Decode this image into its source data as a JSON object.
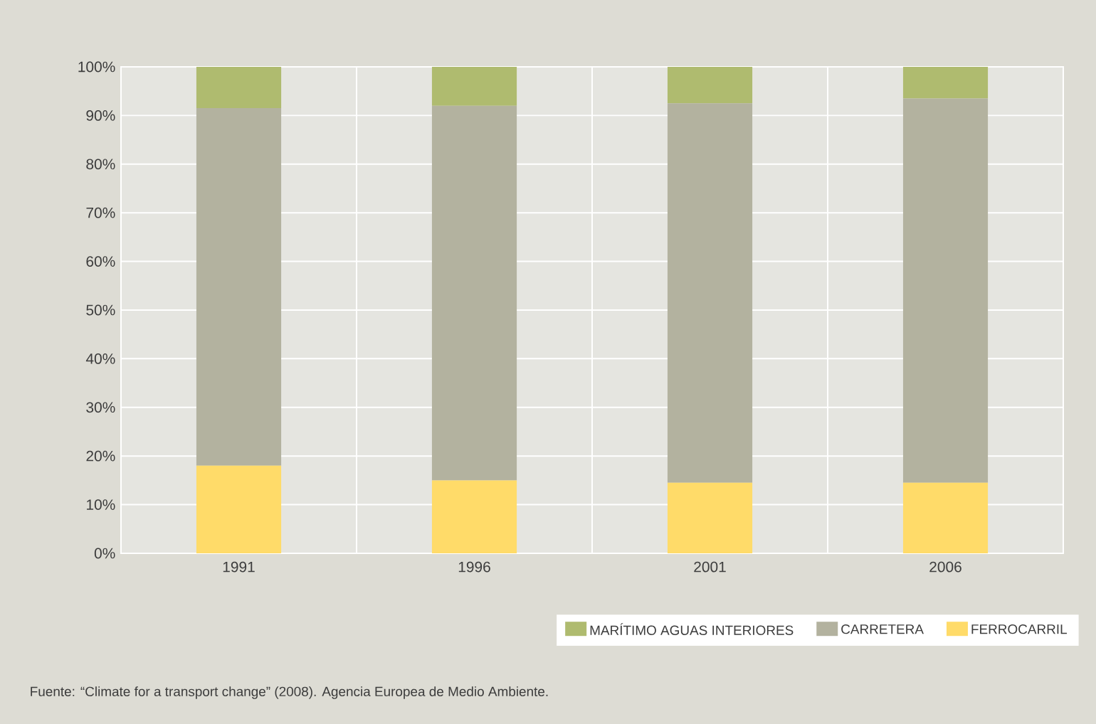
{
  "chart_data": {
    "type": "bar",
    "stacked": true,
    "categories": [
      "1991",
      "1996",
      "2001",
      "2006"
    ],
    "series": [
      {
        "name": "FERROCARRIL",
        "color": "#ffdb69",
        "values": [
          18,
          15,
          14.5,
          14.5
        ]
      },
      {
        "name": "CARRETERA",
        "color": "#b3b29f",
        "values": [
          73.5,
          77,
          78,
          79
        ]
      },
      {
        "name": "MARÍTIMO AGUAS INTERIORES",
        "color": "#afbb6f",
        "values": [
          8.5,
          8,
          7.5,
          6.5
        ]
      }
    ],
    "ylim": [
      0,
      100
    ],
    "yticks": [
      {
        "value": 0,
        "label": "0%"
      },
      {
        "value": 10,
        "label": "10%"
      },
      {
        "value": 20,
        "label": "20%"
      },
      {
        "value": 30,
        "label": "30%"
      },
      {
        "value": 40,
        "label": "40%"
      },
      {
        "value": 50,
        "label": "50%"
      },
      {
        "value": 60,
        "label": "60%"
      },
      {
        "value": 70,
        "label": "70%"
      },
      {
        "value": 80,
        "label": "80%"
      },
      {
        "value": 90,
        "label": "90%"
      },
      {
        "value": 100,
        "label": "100%"
      }
    ],
    "grid": true,
    "legend": "bottom right",
    "annotations": [
      "Fuente: “Climate for a transport change” (2008).  Agencia Europea de Medio Ambiente."
    ]
  }
}
